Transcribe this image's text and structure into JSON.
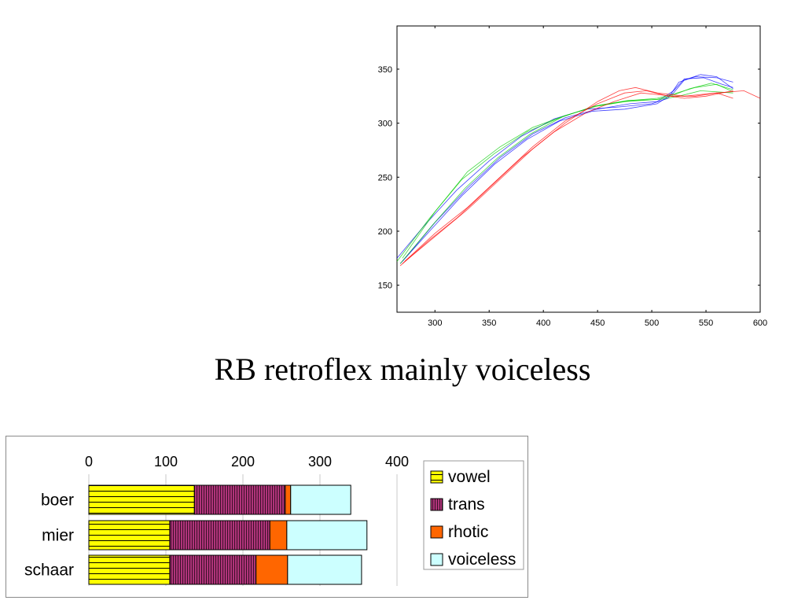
{
  "slide": {
    "title": "RB retroflex mainly voiceless"
  },
  "chart_data": [
    {
      "type": "line",
      "title": "",
      "xlabel": "",
      "ylabel": "",
      "xlim": [
        265,
        600
      ],
      "ylim": [
        125,
        390
      ],
      "xticks": [
        300,
        350,
        400,
        450,
        500,
        550,
        600
      ],
      "yticks": [
        150,
        200,
        250,
        300,
        350
      ],
      "legend": "none",
      "series": [
        {
          "color": "#0000ff",
          "points": [
            [
              265,
              175
            ],
            [
              290,
              205
            ],
            [
              320,
              238
            ],
            [
              350,
              265
            ],
            [
              380,
              288
            ],
            [
              410,
              304
            ],
            [
              440,
              313
            ],
            [
              470,
              315
            ],
            [
              500,
              318
            ],
            [
              515,
              323
            ],
            [
              525,
              338
            ],
            [
              540,
              343
            ],
            [
              560,
              342
            ],
            [
              575,
              338
            ]
          ]
        },
        {
          "color": "#0000ff",
          "points": [
            [
              268,
              170
            ],
            [
              295,
              200
            ],
            [
              325,
              233
            ],
            [
              355,
              262
            ],
            [
              385,
              285
            ],
            [
              415,
              302
            ],
            [
              445,
              311
            ],
            [
              475,
              313
            ],
            [
              505,
              318
            ],
            [
              520,
              328
            ],
            [
              530,
              340
            ],
            [
              545,
              345
            ],
            [
              560,
              343
            ],
            [
              575,
              332
            ]
          ]
        },
        {
          "color": "#0000ff",
          "points": [
            [
              270,
              172
            ],
            [
              300,
              208
            ],
            [
              330,
              240
            ],
            [
              360,
              268
            ],
            [
              390,
              290
            ],
            [
              420,
              305
            ],
            [
              450,
              313
            ],
            [
              480,
              318
            ],
            [
              505,
              320
            ],
            [
              520,
              330
            ],
            [
              530,
              341
            ],
            [
              548,
              342
            ],
            [
              565,
              336
            ],
            [
              575,
              333
            ]
          ]
        },
        {
          "color": "#00cc00",
          "points": [
            [
              265,
              172
            ],
            [
              295,
              212
            ],
            [
              325,
              248
            ],
            [
              355,
              272
            ],
            [
              385,
              292
            ],
            [
              415,
              305
            ],
            [
              445,
              315
            ],
            [
              475,
              320
            ],
            [
              505,
              322
            ],
            [
              520,
              326
            ],
            [
              535,
              332
            ],
            [
              555,
              337
            ],
            [
              575,
              331
            ]
          ]
        },
        {
          "color": "#00cc00",
          "points": [
            [
              270,
              175
            ],
            [
              300,
              218
            ],
            [
              330,
              255
            ],
            [
              360,
              278
            ],
            [
              390,
              296
            ],
            [
              420,
              307
            ],
            [
              450,
              316
            ],
            [
              480,
              321
            ],
            [
              505,
              323
            ],
            [
              520,
              327
            ],
            [
              540,
              333
            ],
            [
              560,
              336
            ],
            [
              575,
              329
            ]
          ]
        },
        {
          "color": "#00cc00",
          "points": [
            [
              268,
              170
            ],
            [
              298,
              206
            ],
            [
              328,
              240
            ],
            [
              358,
              268
            ],
            [
              388,
              290
            ],
            [
              418,
              306
            ],
            [
              448,
              316
            ],
            [
              478,
              321
            ],
            [
              508,
              322
            ],
            [
              525,
              325
            ],
            [
              545,
              330
            ],
            [
              575,
              328
            ]
          ]
        },
        {
          "color": "#ff0000",
          "points": [
            [
              268,
              168
            ],
            [
              295,
              192
            ],
            [
              320,
              212
            ],
            [
              350,
              240
            ],
            [
              380,
              268
            ],
            [
              410,
              292
            ],
            [
              440,
              310
            ],
            [
              465,
              320
            ],
            [
              490,
              328
            ],
            [
              510,
              326
            ],
            [
              530,
              323
            ],
            [
              550,
              325
            ],
            [
              575,
              330
            ]
          ]
        },
        {
          "color": "#ff0000",
          "points": [
            [
              272,
              172
            ],
            [
              300,
              198
            ],
            [
              330,
              222
            ],
            [
              360,
              250
            ],
            [
              390,
              278
            ],
            [
              420,
              302
            ],
            [
              450,
              318
            ],
            [
              475,
              328
            ],
            [
              495,
              330
            ],
            [
              515,
              325
            ],
            [
              540,
              325
            ],
            [
              560,
              328
            ],
            [
              575,
              323
            ]
          ]
        },
        {
          "color": "#ff0000",
          "points": [
            [
              270,
              170
            ],
            [
              300,
              195
            ],
            [
              330,
              220
            ],
            [
              360,
              248
            ],
            [
              390,
              276
            ],
            [
              420,
              300
            ],
            [
              450,
              320
            ],
            [
              470,
              330
            ],
            [
              485,
              333
            ],
            [
              505,
              328
            ],
            [
              530,
              325
            ],
            [
              560,
              328
            ],
            [
              585,
              330
            ],
            [
              600,
              323
            ]
          ]
        }
      ]
    },
    {
      "type": "bar",
      "stacked": true,
      "orientation": "horizontal",
      "title": "",
      "xlabel": "",
      "ylabel": "",
      "xlim": [
        0,
        400
      ],
      "xticks": [
        "0",
        "100",
        "200",
        "300",
        "400"
      ],
      "categories": [
        "boer",
        "mier",
        "schaar"
      ],
      "legend": "right",
      "series": [
        {
          "name": "vowel",
          "color": "#ffff00",
          "values": [
            137,
            105,
            105
          ]
        },
        {
          "name": "trans",
          "color": "#b0347a",
          "values": [
            118,
            130,
            112
          ]
        },
        {
          "name": "rhotic",
          "color": "#ff6600",
          "values": [
            7,
            22,
            41
          ]
        },
        {
          "name": "voiceless",
          "color": "#ccffff",
          "values": [
            78,
            104,
            96
          ]
        }
      ]
    }
  ]
}
